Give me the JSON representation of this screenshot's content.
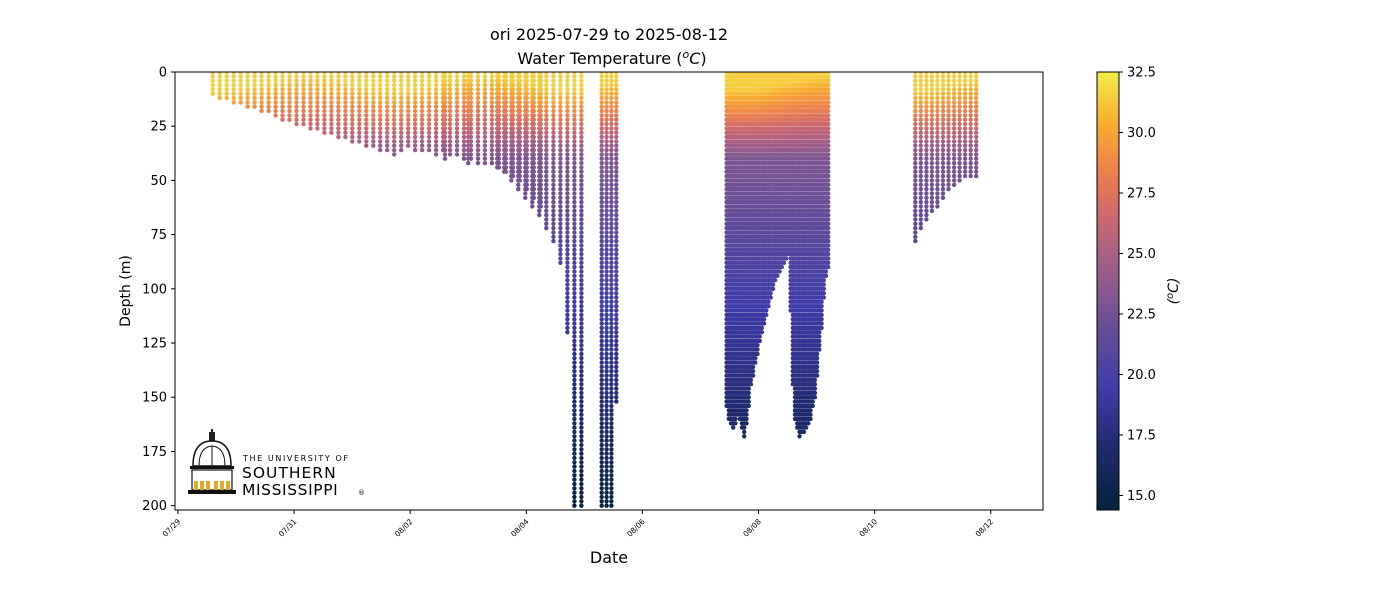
{
  "chart_data": {
    "type": "scatter",
    "title": "ori 2025-07-29 to 2025-08-12",
    "subtitle": "Water Temperature (",
    "subtitle_unit": "oC",
    "subtitle_close": ")",
    "xlabel": "Date",
    "ylabel": "Depth (m)",
    "colorbar_label_unit": "oC",
    "x_axis": {
      "type": "date",
      "start": "2025-07-29",
      "end": "2025-08-12",
      "ticks": [
        "2025-07-29",
        "2025-07-31",
        "2025-08-02",
        "2025-08-04",
        "2025-08-06",
        "2025-08-08",
        "2025-08-10",
        "2025-08-12"
      ],
      "tick_labels": [
        "07/29",
        "07/31",
        "08/02",
        "08/04",
        "08/06",
        "08/08",
        "08/10",
        "08/12"
      ],
      "range_days": [
        -0.05,
        14.9
      ]
    },
    "y_axis": {
      "inverted": true,
      "range": [
        0,
        202
      ],
      "ticks": [
        0,
        25,
        50,
        75,
        100,
        125,
        150,
        175,
        200
      ],
      "tick_labels": [
        "0",
        "25",
        "50",
        "75",
        "100",
        "125",
        "150",
        "175",
        "200"
      ]
    },
    "colorbar": {
      "colormap": "thermal",
      "range": [
        14.4,
        32.5
      ],
      "ticks": [
        15.0,
        17.5,
        20.0,
        22.5,
        25.0,
        27.5,
        30.0,
        32.5
      ],
      "tick_labels": [
        "15.0",
        "17.5",
        "20.0",
        "22.5",
        "25.0",
        "27.5",
        "30.0",
        "32.5"
      ]
    },
    "profile_groups": [
      {
        "start_day": 0.6,
        "end_day": 6.25,
        "count": 48,
        "max_depths": [
          11,
          12,
          13,
          14,
          15,
          16,
          17,
          18,
          19,
          21,
          22,
          23,
          24,
          25,
          26,
          27,
          28,
          29,
          30,
          31,
          32,
          33,
          34,
          35,
          36,
          37,
          38,
          36,
          35,
          37,
          36,
          37,
          38,
          36,
          38,
          39,
          40,
          41,
          42,
          43,
          43,
          44,
          46,
          48,
          50,
          54,
          58,
          62
        ]
      },
      {
        "start_day": 4.6,
        "end_day": 5.0,
        "count": 2,
        "max_depths": [
          40,
          43
        ]
      },
      {
        "start_day": 5.5,
        "end_day": 6.95,
        "count": 13,
        "max_depths": [
          44,
          47,
          50,
          54,
          58,
          62,
          66,
          72,
          78,
          88,
          120,
          200,
          200
        ]
      },
      {
        "start_day": 7.3,
        "end_day": 7.55,
        "count": 4,
        "max_depths": [
          200,
          200,
          200,
          152
        ]
      },
      {
        "start_day": 9.45,
        "end_day": 11.2,
        "count": 47,
        "max_depths": [
          155,
          160,
          163,
          165,
          162,
          158,
          160,
          165,
          168,
          163,
          155,
          145,
          140,
          135,
          130,
          125,
          120,
          116,
          112,
          108,
          104,
          100,
          97,
          95,
          92,
          90,
          88,
          86,
          85,
          110,
          145,
          160,
          165,
          168,
          166,
          167,
          165,
          162,
          160,
          155,
          150,
          140,
          128,
          118,
          105,
          95,
          90
        ]
      },
      {
        "start_day": 12.7,
        "end_day": 13.75,
        "count": 12,
        "max_depths": [
          78,
          72,
          68,
          65,
          62,
          58,
          55,
          52,
          50,
          49,
          49,
          49
        ]
      }
    ]
  },
  "logo": {
    "line1": "THE UNIVERSITY OF",
    "line2": "SOUTHERN",
    "line3": "MISSISSIPPI",
    "mark": "®"
  }
}
